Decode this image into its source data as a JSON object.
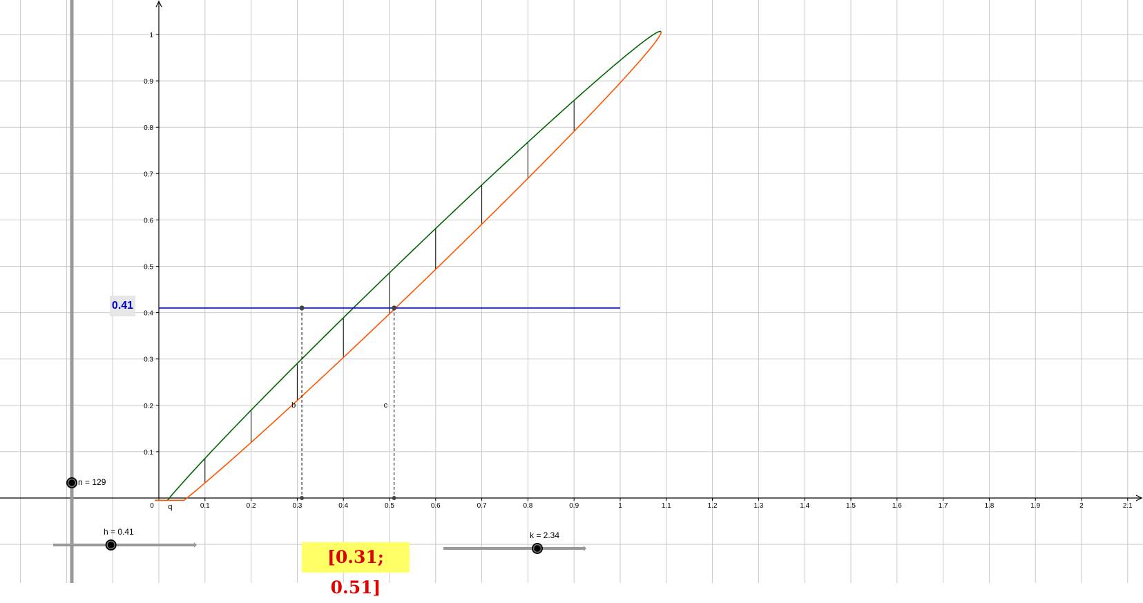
{
  "axes": {
    "x_ticks": [
      "0",
      "0.1",
      "0.2",
      "0.3",
      "0.4",
      "0.5",
      "0.6",
      "0.7",
      "0.8",
      "0.9",
      "1",
      "1.1",
      "1.2",
      "1.3",
      "1.4",
      "1.5",
      "1.6",
      "1.7",
      "1.8",
      "1.9",
      "2",
      "2.1"
    ],
    "y_ticks": [
      "0.1",
      "0.2",
      "0.3",
      "0.4",
      "0.5",
      "0.6",
      "0.7",
      "0.8",
      "0.9",
      "1"
    ],
    "x_range": [
      -0.34,
      2.14
    ],
    "y_range": [
      -0.18,
      1.07
    ],
    "grid": true
  },
  "curves": {
    "upper_color": "#006400",
    "lower_color": "#ff5500",
    "level_color": "#0000ff",
    "curve_label": "q"
  },
  "level": {
    "value": 0.41,
    "box_text": "0.41"
  },
  "verticals_x": [
    0.1,
    0.2,
    0.3,
    0.4,
    0.5,
    0.6,
    0.7,
    0.8,
    0.9
  ],
  "points": {
    "b": {
      "label": "b",
      "x": 0.31,
      "y": 0.41
    },
    "c": {
      "label": "c",
      "x": 0.51,
      "y": 0.41
    }
  },
  "sliders": {
    "n": {
      "label": "n = 129",
      "value": 129
    },
    "h": {
      "label": "h = 0.41",
      "value": 0.41,
      "fraction": 0.41
    },
    "k": {
      "label": "k = 2.34",
      "value": 2.34,
      "fraction": 0.67
    }
  },
  "interval_text": "[0.31; 0.51]"
}
